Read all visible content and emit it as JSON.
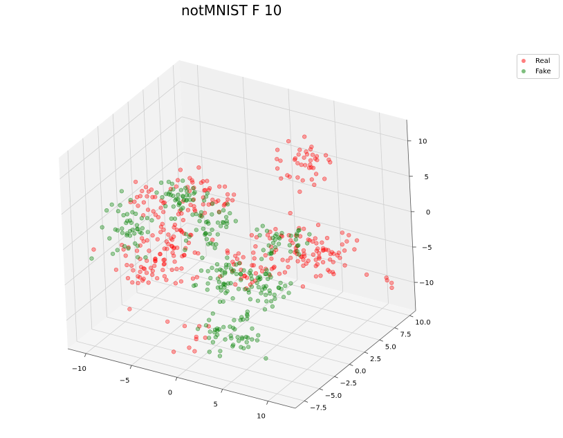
{
  "chart_data": {
    "type": "scatter",
    "projection": "3d",
    "title": "notMNIST F 10",
    "grid": true,
    "legend_position": "top-right",
    "axes": {
      "x": {
        "ticks": [
          -10,
          -5,
          0,
          5,
          10
        ],
        "tick_labels": [
          "−10",
          "−5",
          "0",
          "5",
          "10"
        ],
        "range": [
          -12,
          13
        ]
      },
      "y": {
        "ticks": [
          -7.5,
          -5.0,
          -2.5,
          0.0,
          2.5,
          5.0,
          7.5,
          10.0
        ],
        "tick_labels": [
          "−7.5",
          "−5.0",
          "−2.5",
          "0.0",
          "2.5",
          "5.0",
          "7.5",
          "10.0"
        ],
        "range": [
          -9,
          11
        ]
      },
      "z": {
        "ticks": [
          -10,
          -5,
          0,
          5,
          10
        ],
        "tick_labels": [
          "−10",
          "−5",
          "0",
          "5",
          "10"
        ],
        "range": [
          -14,
          13
        ]
      }
    },
    "series": [
      {
        "name": "Real",
        "color": "#ff0000",
        "clusters": [
          {
            "center": [
              0,
              -3,
              8
            ],
            "spread": [
              2.5,
              2,
              2.5
            ],
            "n": 40
          },
          {
            "center": [
              6,
              4,
              9
            ],
            "spread": [
              2.5,
              2,
              2
            ],
            "n": 40
          },
          {
            "center": [
              -7,
              -2,
              4
            ],
            "spread": [
              2,
              2,
              2.5
            ],
            "n": 25
          },
          {
            "center": [
              -3,
              -4,
              1
            ],
            "spread": [
              2.5,
              2,
              3
            ],
            "n": 50
          },
          {
            "center": [
              -5,
              -5,
              -3
            ],
            "spread": [
              2.5,
              2,
              2.5
            ],
            "n": 50
          },
          {
            "center": [
              7,
              1,
              0
            ],
            "spread": [
              2.5,
              2,
              3
            ],
            "n": 40
          },
          {
            "center": [
              8,
              4,
              -3
            ],
            "spread": [
              2.5,
              2,
              2.5
            ],
            "n": 40
          },
          {
            "center": [
              2,
              1,
              -4
            ],
            "spread": [
              3,
              2,
              2.5
            ],
            "n": 45
          },
          {
            "center": [
              0,
              -6,
              -10
            ],
            "spread": [
              2,
              1.5,
              1.5
            ],
            "n": 10
          },
          {
            "center": [
              12,
              8,
              -8
            ],
            "spread": [
              1,
              1,
              1
            ],
            "n": 4
          }
        ]
      },
      {
        "name": "Fake",
        "color": "#008000",
        "clusters": [
          {
            "center": [
              -9,
              -3,
              0
            ],
            "spread": [
              2,
              2,
              2.5
            ],
            "n": 45
          },
          {
            "center": [
              -3,
              -3,
              6
            ],
            "spread": [
              2,
              2,
              2
            ],
            "n": 40
          },
          {
            "center": [
              -1,
              -1,
              2
            ],
            "spread": [
              2,
              2,
              3
            ],
            "n": 45
          },
          {
            "center": [
              1,
              -2,
              -5
            ],
            "spread": [
              2,
              2,
              2.5
            ],
            "n": 50
          },
          {
            "center": [
              4,
              3,
              -2
            ],
            "spread": [
              2,
              2,
              2
            ],
            "n": 35
          },
          {
            "center": [
              4,
              0,
              -6
            ],
            "spread": [
              2,
              2,
              2
            ],
            "n": 40
          },
          {
            "center": [
              3,
              -4,
              -10
            ],
            "spread": [
              2.5,
              2,
              2
            ],
            "n": 50
          }
        ]
      }
    ]
  }
}
